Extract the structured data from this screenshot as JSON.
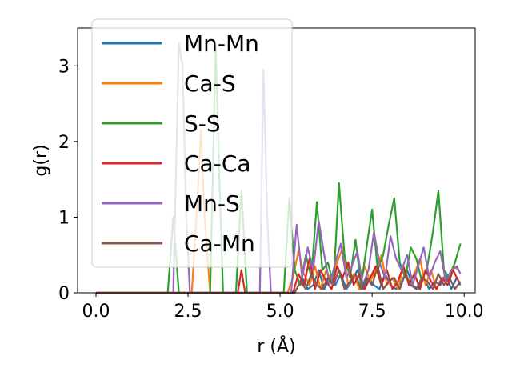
{
  "chart_data": {
    "type": "line",
    "xlabel": "r (Å)",
    "ylabel": "g(r)",
    "xlim": [
      -0.5,
      10.3
    ],
    "ylim": [
      0,
      3.5
    ],
    "xticks": [
      0.0,
      2.5,
      5.0,
      7.5,
      10.0
    ],
    "xtick_labels": [
      "0.0",
      "2.5",
      "5.0",
      "7.5",
      "10.0"
    ],
    "yticks": [
      0,
      1,
      2,
      3
    ],
    "ytick_labels": [
      "0",
      "1",
      "2",
      "3"
    ],
    "grid": false,
    "legend_position": "upper-left",
    "series": [
      {
        "name": "Mn-Mn",
        "color": "#1f77b4",
        "x": [
          0,
          5.3,
          5.45,
          5.6,
          5.75,
          5.9,
          6.05,
          6.2,
          6.35,
          6.5,
          6.65,
          6.8,
          6.95,
          7.1,
          7.25,
          7.4,
          7.55,
          7.7,
          7.85,
          8.0,
          8.15,
          8.3,
          8.45,
          8.6,
          8.75,
          8.9,
          9.05,
          9.2,
          9.35,
          9.5,
          9.65,
          9.8,
          9.9
        ],
        "y": [
          0,
          0,
          0.05,
          0.2,
          0.05,
          0.1,
          0.3,
          0.05,
          0.2,
          0.1,
          0.25,
          0.05,
          0.15,
          0.3,
          0.05,
          0.2,
          0.1,
          0.05,
          0.25,
          0.1,
          0.05,
          0.15,
          0.3,
          0.1,
          0.05,
          0.2,
          0.05,
          0.15,
          0.1,
          0.25,
          0.05,
          0.2,
          0.1
        ]
      },
      {
        "name": "Ca-S",
        "color": "#ff7f0e",
        "x": [
          0,
          2.6,
          2.75,
          2.85,
          2.95,
          3.1,
          5.2,
          5.35,
          5.5,
          5.65,
          5.8,
          5.95,
          6.1,
          6.25,
          6.4,
          6.55,
          6.7,
          6.85,
          7.0,
          7.15,
          7.3,
          7.45,
          7.6,
          7.75,
          7.9,
          8.05,
          8.2,
          8.35,
          8.5,
          8.65,
          8.8,
          8.95,
          9.1,
          9.25,
          9.4,
          9.55,
          9.7,
          9.85
        ],
        "y": [
          0,
          0,
          1.2,
          2.15,
          1.0,
          0,
          0,
          0.2,
          0.55,
          0.25,
          0.1,
          0.35,
          0.05,
          0.3,
          0.15,
          0.4,
          0.6,
          0.1,
          0.25,
          0.05,
          0.35,
          0.15,
          0.3,
          0.5,
          0.1,
          0.2,
          0.05,
          0.35,
          0.15,
          0.25,
          0.45,
          0.1,
          0.3,
          0.05,
          0.2,
          0.15,
          0.35,
          0.3
        ]
      },
      {
        "name": "S-S",
        "color": "#2ca02c",
        "x": [
          0,
          1.95,
          2.1,
          2.25,
          3.1,
          3.25,
          3.35,
          3.45,
          3.8,
          3.95,
          4.1,
          5.1,
          5.25,
          5.4,
          5.55,
          5.7,
          5.85,
          6.0,
          6.15,
          6.3,
          6.45,
          6.6,
          6.75,
          6.9,
          7.05,
          7.2,
          7.35,
          7.5,
          7.65,
          7.8,
          7.95,
          8.1,
          8.25,
          8.4,
          8.55,
          8.7,
          8.85,
          9.0,
          9.15,
          9.3,
          9.45,
          9.6,
          9.75,
          9.9
        ],
        "y": [
          0,
          0,
          1.0,
          0,
          0,
          3.25,
          1.5,
          0,
          0,
          1.35,
          0,
          0,
          1.25,
          0.3,
          0.1,
          0.5,
          0.2,
          1.2,
          0.3,
          0.4,
          0.1,
          1.45,
          0.5,
          0.2,
          0.7,
          0.1,
          0.6,
          1.1,
          0.3,
          0.5,
          0.9,
          1.25,
          0.4,
          0.2,
          0.6,
          0.45,
          0.15,
          0.35,
          0.8,
          1.35,
          0.3,
          0.2,
          0.4,
          0.65
        ]
      },
      {
        "name": "Ca-Ca",
        "color": "#d62728",
        "x": [
          0,
          3.85,
          3.95,
          4.05,
          5.35,
          5.5,
          5.65,
          5.8,
          5.95,
          6.1,
          6.25,
          6.4,
          6.55,
          6.7,
          6.85,
          7.0,
          7.15,
          7.3,
          7.45,
          7.6,
          7.75,
          7.9,
          8.05,
          8.2,
          8.35,
          8.5,
          8.65,
          8.8,
          8.95,
          9.1,
          9.25,
          9.4,
          9.55,
          9.7,
          9.85
        ],
        "y": [
          0,
          0,
          0.3,
          0,
          0,
          0.25,
          0.1,
          0.45,
          0.05,
          0.3,
          0.15,
          0.05,
          0.35,
          0.2,
          0.4,
          0.1,
          0.25,
          0.05,
          0.2,
          0.35,
          0.1,
          0.3,
          0.05,
          0.15,
          0.35,
          0.1,
          0.25,
          0.05,
          0.3,
          0.15,
          0.05,
          0.2,
          0.1,
          0.3,
          0.15
        ]
      },
      {
        "name": "Mn-S",
        "color": "#9467bd",
        "x": [
          0,
          2.1,
          2.25,
          2.35,
          2.45,
          2.55,
          4.45,
          4.55,
          4.65,
          4.75,
          5.3,
          5.45,
          5.6,
          5.75,
          5.9,
          6.05,
          6.2,
          6.35,
          6.5,
          6.65,
          6.8,
          6.95,
          7.1,
          7.25,
          7.4,
          7.55,
          7.7,
          7.85,
          8.0,
          8.15,
          8.3,
          8.45,
          8.6,
          8.75,
          8.9,
          9.05,
          9.2,
          9.35,
          9.5,
          9.65,
          9.8,
          9.9
        ],
        "y": [
          0,
          0,
          3.3,
          3.0,
          1.0,
          0,
          0,
          2.95,
          1.0,
          0,
          0,
          0.9,
          0.2,
          0.6,
          0.3,
          0.95,
          0.5,
          0.1,
          0.4,
          0.65,
          0.2,
          0.35,
          0.55,
          0.1,
          0.3,
          0.8,
          0.4,
          0.2,
          0.75,
          0.45,
          0.3,
          0.5,
          0.1,
          0.35,
          0.6,
          0.2,
          0.4,
          0.55,
          0.15,
          0.3,
          0.35,
          0.25
        ]
      },
      {
        "name": "Ca-Mn",
        "color": "#8c564b",
        "x": [
          0,
          5.4,
          5.55,
          5.7,
          5.85,
          6.0,
          6.15,
          6.3,
          6.45,
          6.6,
          6.75,
          6.9,
          7.05,
          7.2,
          7.35,
          7.5,
          7.65,
          7.8,
          7.95,
          8.1,
          8.25,
          8.4,
          8.55,
          8.7,
          8.85,
          9.0,
          9.15,
          9.3,
          9.45,
          9.6,
          9.75,
          9.9
        ],
        "y": [
          0,
          0,
          0.15,
          0.05,
          0.25,
          0.1,
          0.05,
          0.2,
          0.1,
          0.3,
          0.05,
          0.15,
          0.25,
          0.05,
          0.2,
          0.1,
          0.35,
          0.05,
          0.15,
          0.2,
          0.05,
          0.25,
          0.1,
          0.05,
          0.2,
          0.15,
          0.05,
          0.25,
          0.1,
          0.2,
          0.05,
          0.15
        ]
      }
    ]
  }
}
